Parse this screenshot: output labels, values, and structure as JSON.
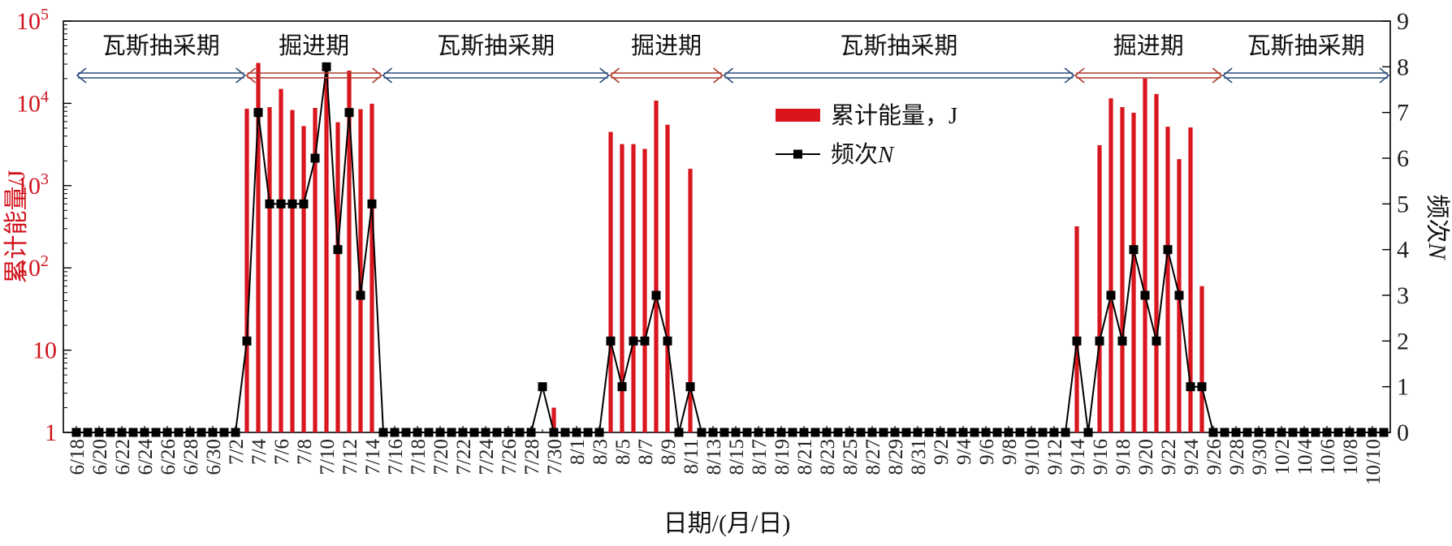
{
  "chart_data": {
    "type": "bar+line",
    "xlabel": "日期/(月/日)",
    "ylabel_left": "累计能量/J",
    "ylabel_right": "频次N",
    "y_left_scale": "log",
    "y_left_range": [
      1,
      100000
    ],
    "y_left_ticks": [
      {
        "value": 1,
        "base": "1",
        "exp": ""
      },
      {
        "value": 10,
        "base": "10",
        "exp": ""
      },
      {
        "value": 100,
        "base": "10",
        "exp": "2"
      },
      {
        "value": 1000,
        "base": "10",
        "exp": "3"
      },
      {
        "value": 10000,
        "base": "10",
        "exp": "4"
      },
      {
        "value": 100000,
        "base": "10",
        "exp": "5"
      }
    ],
    "y_right_range": [
      0,
      9
    ],
    "y_right_ticks": [
      "0",
      "1",
      "2",
      "3",
      "4",
      "5",
      "6",
      "7",
      "8",
      "9"
    ],
    "x_tick_labels": [
      "6/18",
      "6/20",
      "6/22",
      "6/24",
      "6/26",
      "6/28",
      "6/30",
      "7/2",
      "7/4",
      "7/6",
      "7/8",
      "7/10",
      "7/12",
      "7/14",
      "7/16",
      "7/18",
      "7/20",
      "7/22",
      "7/24",
      "7/26",
      "7/28",
      "7/30",
      "8/1",
      "8/3",
      "8/5",
      "8/7",
      "8/9",
      "8/11",
      "8/13",
      "8/15",
      "8/17",
      "8/19",
      "8/21",
      "8/23",
      "8/25",
      "8/27",
      "8/29",
      "8/31",
      "9/2",
      "9/4",
      "9/6",
      "9/8",
      "9/10",
      "9/12",
      "9/14",
      "9/16",
      "9/18",
      "9/20",
      "9/22",
      "9/24",
      "9/26",
      "9/28",
      "9/30",
      "10/2",
      "10/4",
      "10/6",
      "10/8",
      "10/10"
    ],
    "legend": [
      {
        "key": "energy",
        "label": "累计能量，J"
      },
      {
        "key": "freq",
        "label": "频次",
        "label_italic": "N"
      }
    ],
    "phases": [
      {
        "label": "瓦斯抽采期",
        "from_day": 0,
        "to_day": 14.9,
        "kind": "gas"
      },
      {
        "label": "掘进期",
        "from_day": 14.9,
        "to_day": 26.9,
        "kind": "dig"
      },
      {
        "label": "瓦斯抽采期",
        "from_day": 26.9,
        "to_day": 46.9,
        "kind": "gas"
      },
      {
        "label": "掘进期",
        "from_day": 46.9,
        "to_day": 56.9,
        "kind": "dig"
      },
      {
        "label": "瓦斯抽采期",
        "from_day": 56.9,
        "to_day": 87.8,
        "kind": "gas"
      },
      {
        "label": "掘进期",
        "from_day": 87.8,
        "to_day": 100.8,
        "kind": "dig"
      },
      {
        "label": "瓦斯抽采期",
        "from_day": 100.8,
        "to_day": 115.5,
        "kind": "gas"
      }
    ],
    "colors": {
      "energy": "#d9151e",
      "freq": "#000000",
      "dig_arrow": "#b03a2e",
      "gas_arrow": "#2e4d7b",
      "left_axis": "#d0121b"
    },
    "energy_J": [
      {
        "date": "7/3",
        "value": 8600
      },
      {
        "date": "7/4",
        "value": 31000
      },
      {
        "date": "7/5",
        "value": 9000
      },
      {
        "date": "7/6",
        "value": 15000
      },
      {
        "date": "7/7",
        "value": 8300
      },
      {
        "date": "7/8",
        "value": 5300
      },
      {
        "date": "7/9",
        "value": 8800
      },
      {
        "date": "7/10",
        "value": 28000
      },
      {
        "date": "7/11",
        "value": 5900
      },
      {
        "date": "7/12",
        "value": 25000
      },
      {
        "date": "7/13",
        "value": 8500
      },
      {
        "date": "7/14",
        "value": 9900
      },
      {
        "date": "7/30",
        "value": 2
      },
      {
        "date": "8/4",
        "value": 4500
      },
      {
        "date": "8/5",
        "value": 3200
      },
      {
        "date": "8/6",
        "value": 3200
      },
      {
        "date": "8/7",
        "value": 2800
      },
      {
        "date": "8/8",
        "value": 10800
      },
      {
        "date": "8/9",
        "value": 5500
      },
      {
        "date": "8/11",
        "value": 1600
      },
      {
        "date": "9/14",
        "value": 320
      },
      {
        "date": "9/16",
        "value": 3100
      },
      {
        "date": "9/17",
        "value": 11500
      },
      {
        "date": "9/18",
        "value": 9000
      },
      {
        "date": "9/19",
        "value": 7700
      },
      {
        "date": "9/20",
        "value": 20000
      },
      {
        "date": "9/21",
        "value": 13000
      },
      {
        "date": "9/22",
        "value": 5200
      },
      {
        "date": "9/23",
        "value": 2100
      },
      {
        "date": "9/24",
        "value": 5100
      },
      {
        "date": "9/25",
        "value": 60
      }
    ],
    "frequency_N": [
      0,
      0,
      0,
      0,
      0,
      0,
      0,
      0,
      0,
      0,
      0,
      0,
      0,
      0,
      0,
      2,
      7,
      5,
      5,
      5,
      5,
      6,
      8,
      4,
      7,
      3,
      5,
      0,
      0,
      0,
      0,
      0,
      0,
      0,
      0,
      0,
      0,
      0,
      0,
      0,
      0,
      1,
      0,
      0,
      0,
      0,
      0,
      2,
      1,
      2,
      2,
      3,
      2,
      0,
      1,
      0,
      0,
      0,
      0,
      0,
      0,
      0,
      0,
      0,
      0,
      0,
      0,
      0,
      0,
      0,
      0,
      0,
      0,
      0,
      0,
      0,
      0,
      0,
      0,
      0,
      0,
      0,
      0,
      0,
      0,
      0,
      0,
      0,
      2,
      0,
      2,
      3,
      2,
      4,
      3,
      2,
      4,
      3,
      1,
      1,
      0,
      0,
      0,
      0,
      0,
      0,
      0,
      0,
      0,
      0,
      0,
      0,
      0,
      0,
      0,
      0
    ]
  }
}
